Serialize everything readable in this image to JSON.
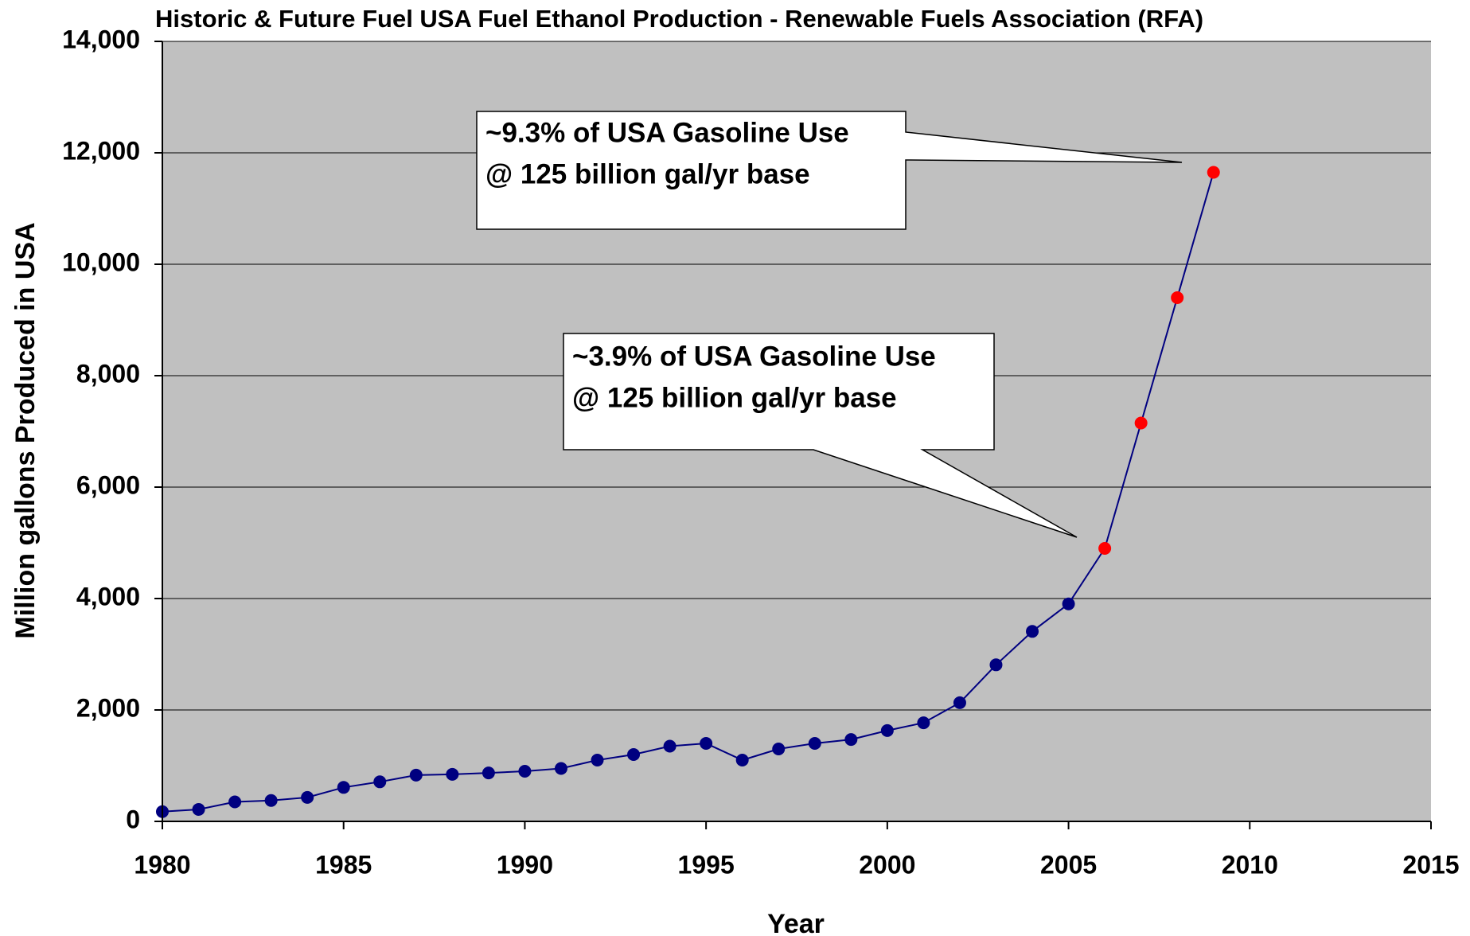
{
  "chart_data": {
    "type": "line",
    "title": "Historic & Future Fuel USA Fuel Ethanol  Production - Renewable Fuels Association (RFA)",
    "x_label": "Year",
    "y_label": "Million gallons Produced in USA",
    "x": [
      1980,
      1981,
      1982,
      1983,
      1984,
      1985,
      1986,
      1987,
      1988,
      1989,
      1990,
      1991,
      1992,
      1993,
      1994,
      1995,
      1996,
      1997,
      1998,
      1999,
      2000,
      2001,
      2002,
      2003,
      2004,
      2005,
      2006,
      2007,
      2008,
      2009
    ],
    "series": [
      {
        "color": "#000080",
        "values": [
          175,
          215,
          350,
          375,
          430,
          610,
          710,
          830,
          845,
          870,
          900,
          950,
          1100,
          1200,
          1350,
          1400,
          1100,
          1300,
          1400,
          1470,
          1630,
          1770,
          2130,
          2810,
          3410,
          3904,
          4900,
          7150,
          9400,
          11650
        ],
        "marker_colors": [
          "#000080",
          "#000080",
          "#000080",
          "#000080",
          "#000080",
          "#000080",
          "#000080",
          "#000080",
          "#000080",
          "#000080",
          "#000080",
          "#000080",
          "#000080",
          "#000080",
          "#000080",
          "#000080",
          "#000080",
          "#000080",
          "#000080",
          "#000080",
          "#000080",
          "#000080",
          "#000080",
          "#000080",
          "#000080",
          "#000080",
          "#ff0000",
          "#ff0000",
          "#ff0000",
          "#ff0000"
        ]
      }
    ],
    "xlim": [
      1980,
      2015
    ],
    "xticks": [
      1980,
      1985,
      1990,
      1995,
      2000,
      2005,
      2010,
      2015
    ],
    "ylim": [
      0,
      14000
    ],
    "yticks": [
      0,
      {
        "value": 2000,
        "label": "2,000"
      },
      {
        "value": 4000,
        "label": "4,000"
      },
      {
        "value": 6000,
        "label": "6,000"
      },
      {
        "value": 8000,
        "label": "8,000"
      },
      {
        "value": 10000,
        "label": "10,000"
      },
      {
        "value": 12000,
        "label": "12,000"
      },
      {
        "value": 14000,
        "label": "14,000"
      }
    ],
    "grid": true,
    "annotations": [
      {
        "lines": [
          "~9.3% of USA Gasoline Use",
          "@ 125 billion gal/yr base"
        ]
      },
      {
        "lines": [
          "~3.9% of USA Gasoline Use",
          "@ 125 billion gal/yr base"
        ]
      }
    ]
  }
}
